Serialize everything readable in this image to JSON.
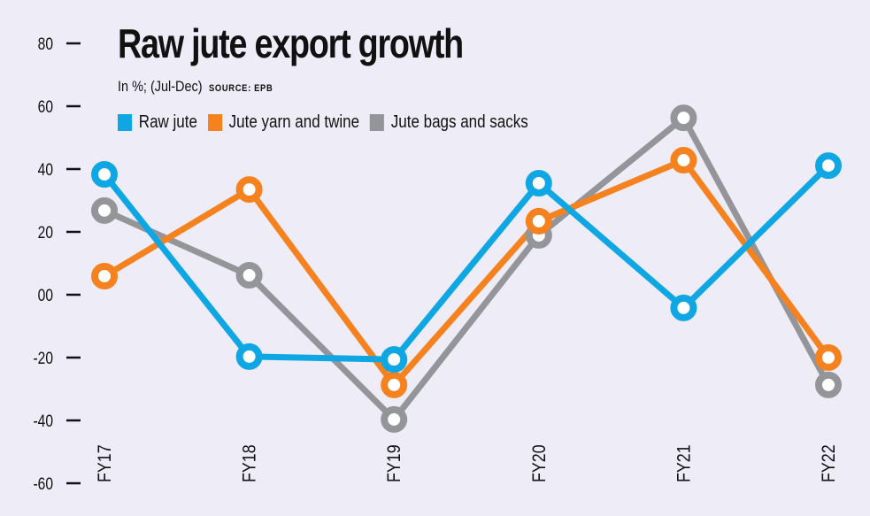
{
  "chart_data": {
    "type": "line",
    "title": "Raw jute export growth",
    "subtitle": "In %; (Jul-Dec)",
    "source": "SOURCE: EPB",
    "xlabel": "",
    "ylabel": "",
    "categories": [
      "FY17",
      "FY18",
      "FY19",
      "FY20",
      "FY21",
      "FY22"
    ],
    "ylim": [
      -60,
      80
    ],
    "yticks": [
      80,
      60,
      40,
      20,
      0,
      -20,
      -40,
      -60
    ],
    "ytick_labels": [
      "80",
      "60",
      "40",
      "20",
      "00",
      "-20",
      "-40",
      "-60"
    ],
    "grid": false,
    "legend_position": "top-left",
    "series": [
      {
        "name": "Raw jute",
        "color": "#0fa7e3",
        "values": [
          38.3,
          -19.7,
          -20.6,
          35.5,
          -4.2,
          41.1
        ]
      },
      {
        "name": "Jute yarn and twine",
        "color": "#f5821f",
        "values": [
          5.9,
          33.5,
          -28.7,
          23.4,
          42.8,
          -20.0
        ]
      },
      {
        "name": "Jute bags and sacks",
        "color": "#939598",
        "values": [
          26.8,
          6.2,
          -39.7,
          18.9,
          56.3,
          -28.7
        ]
      }
    ]
  }
}
